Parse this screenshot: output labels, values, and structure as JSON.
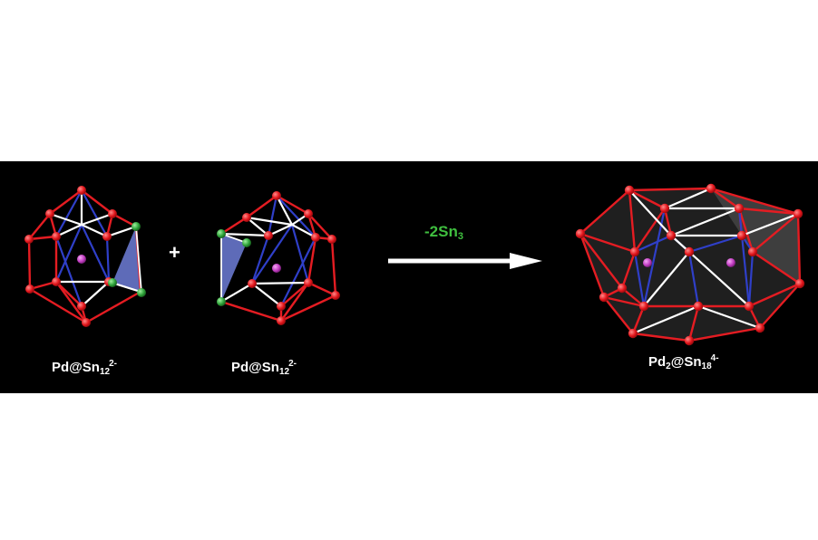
{
  "scene": {
    "background": "#000000",
    "colors": {
      "tin_atom": "#e2151b",
      "palladium_atom": "#c23dc2",
      "removed_atom": "#2fa33a",
      "outer_bond": "#e41c22",
      "inner_bond": "#2f3fc8",
      "white_bond": "#ffffff",
      "removed_face": "#6f7ed8",
      "reaction_text": "#3fbf3f"
    }
  },
  "operators": {
    "plus": "+"
  },
  "reaction": {
    "base": "-2Sn",
    "sub": "3",
    "arrow_icon": "right-arrow"
  },
  "labels": {
    "left": {
      "base": "Pd@Sn",
      "sub": "12",
      "sup": "2-"
    },
    "middle": {
      "base": "Pd@Sn",
      "sub": "12",
      "sup": "2-"
    },
    "right": {
      "pre": "Pd",
      "pre_sub": "2",
      "base": "@Sn",
      "sub": "18",
      "sup": "4-"
    }
  }
}
